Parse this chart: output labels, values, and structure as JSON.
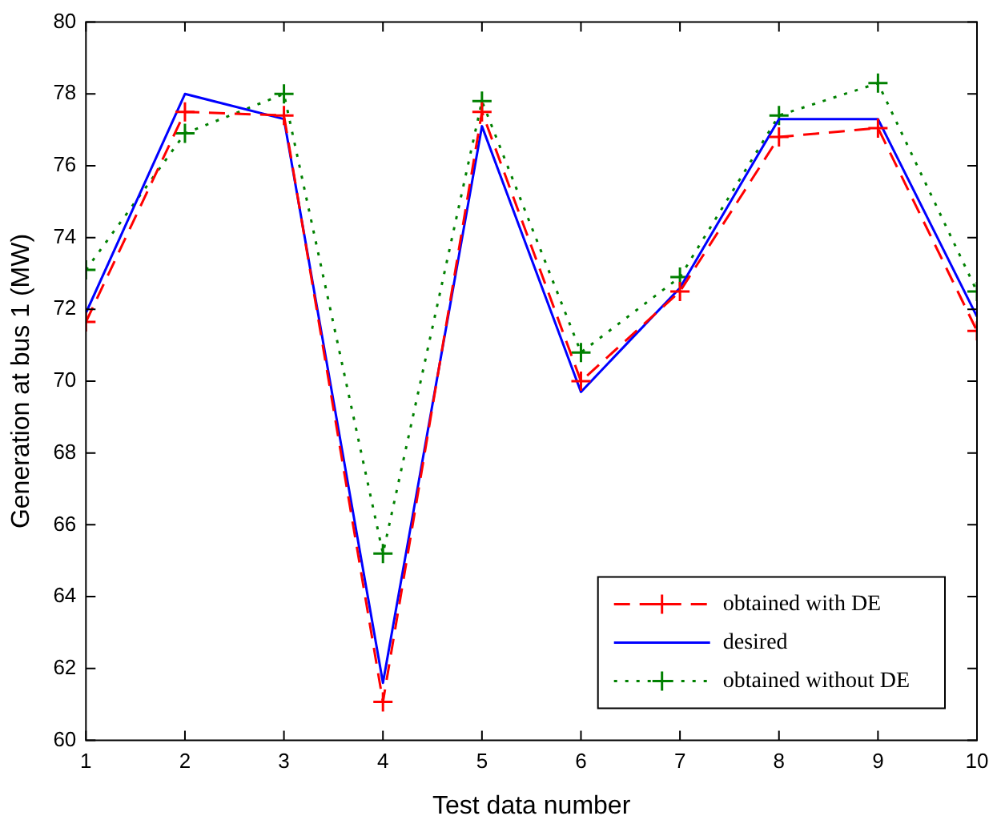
{
  "chart_data": {
    "type": "line",
    "xlabel": "Test data number",
    "ylabel": "Generation at bus 1 (MW)",
    "x": [
      1,
      2,
      3,
      4,
      5,
      6,
      7,
      8,
      9,
      10
    ],
    "series": [
      {
        "name": "obtained with DE",
        "color": "#ff0000",
        "marker": "cross",
        "line_style": "dashed",
        "values": [
          71.65,
          77.5,
          77.4,
          61.07,
          77.5,
          70.0,
          72.5,
          76.8,
          77.05,
          71.4
        ]
      },
      {
        "name": "desired",
        "color": "#0000ff",
        "marker": "none",
        "line_style": "solid",
        "values": [
          71.9,
          78.0,
          77.3,
          61.6,
          77.1,
          69.7,
          72.6,
          77.3,
          77.3,
          71.8
        ]
      },
      {
        "name": "obtained without DE",
        "color": "#008000",
        "marker": "cross",
        "line_style": "dotted",
        "values": [
          73.1,
          76.9,
          78.0,
          65.2,
          77.8,
          70.8,
          72.9,
          77.4,
          78.3,
          72.5
        ]
      }
    ],
    "xlim": [
      1,
      10
    ],
    "xticks": [
      1,
      2,
      3,
      4,
      5,
      6,
      7,
      8,
      9,
      10
    ],
    "ylim": [
      60,
      80
    ],
    "yticks": [
      60,
      62,
      64,
      66,
      68,
      70,
      72,
      74,
      76,
      78,
      80
    ],
    "grid": false,
    "legend": "bottom right"
  }
}
